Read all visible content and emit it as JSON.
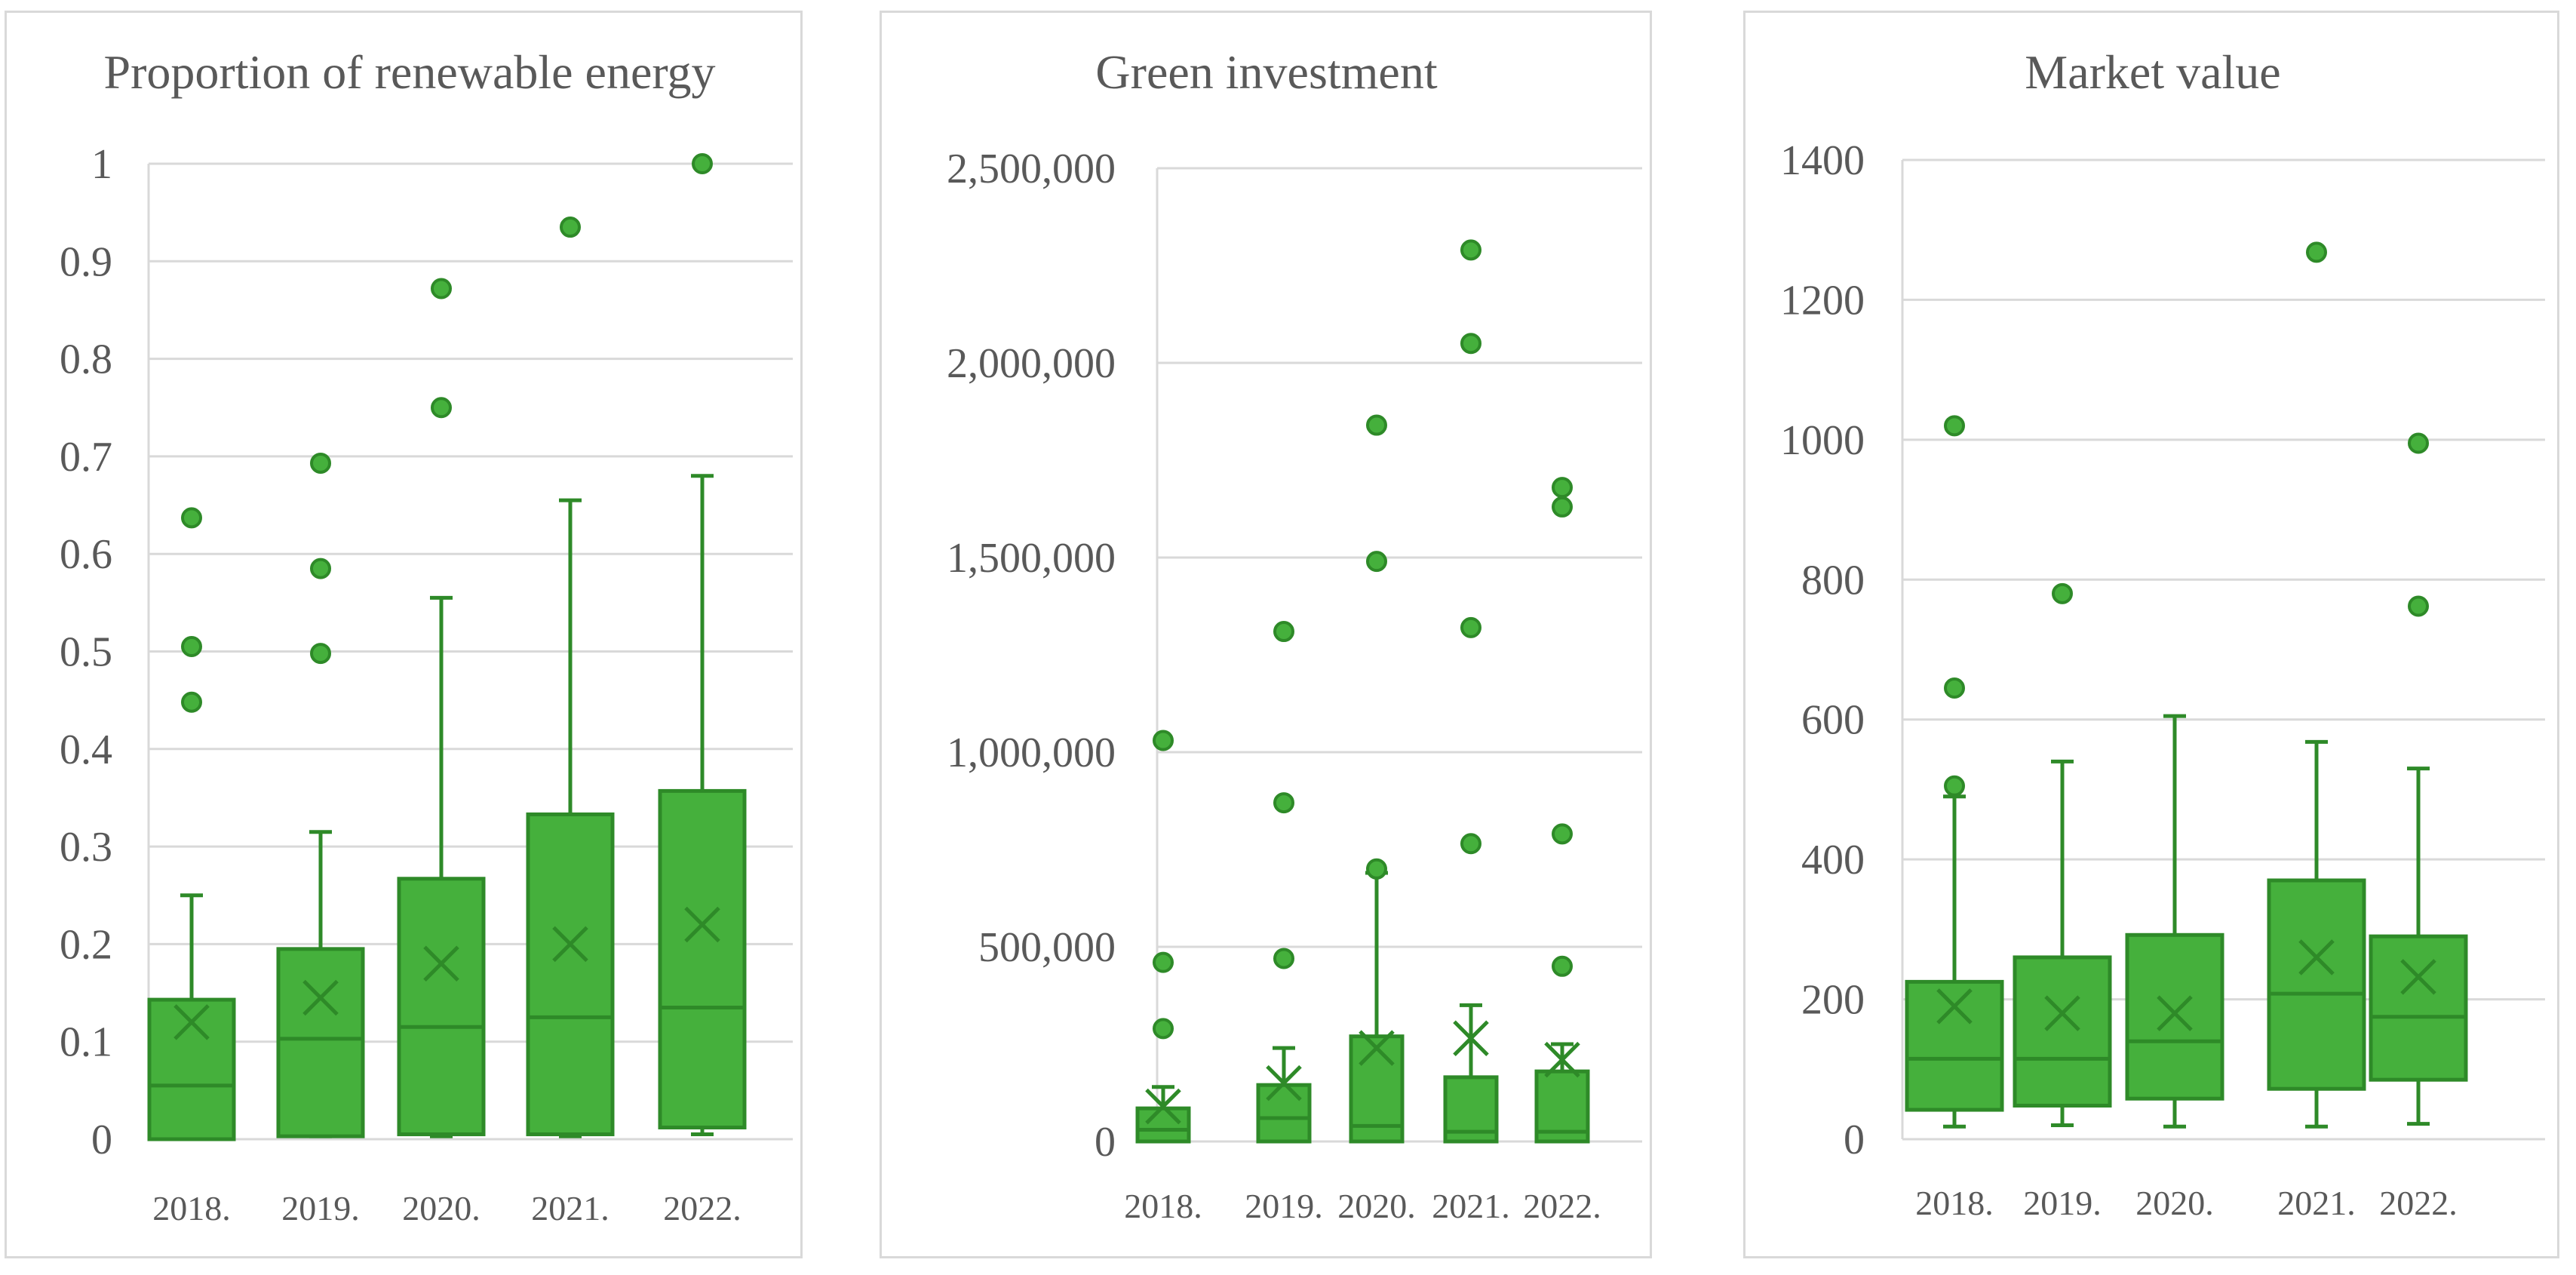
{
  "colors": {
    "box_fill": "#45b03c",
    "box_stroke": "#2e8a28",
    "grid": "#d9d9d9",
    "text": "#595959"
  },
  "chart_data": [
    {
      "type": "box",
      "title": "Proportion of renewable energy",
      "categories": [
        "2018.",
        "2019.",
        "2020.",
        "2021.",
        "2022."
      ],
      "ylim": [
        0,
        1
      ],
      "yticks": [
        0,
        0.1,
        0.2,
        0.3,
        0.4,
        0.5,
        0.6,
        0.7,
        0.8,
        0.9,
        1
      ],
      "ytick_labels": [
        "0",
        "0.1",
        "0.2",
        "0.3",
        "0.4",
        "0.5",
        "0.6",
        "0.7",
        "0.8",
        "0.9",
        "1"
      ],
      "boxes": [
        {
          "min": 0,
          "q1": 0,
          "median": 0.055,
          "q3": 0.143,
          "max": 0.25,
          "mean": 0.12,
          "outliers": [
            0.448,
            0.505,
            0.637
          ]
        },
        {
          "min": 0.003,
          "q1": 0.003,
          "median": 0.103,
          "q3": 0.195,
          "max": 0.315,
          "mean": 0.145,
          "outliers": [
            0.498,
            0.585,
            0.693
          ]
        },
        {
          "min": 0.003,
          "q1": 0.005,
          "median": 0.115,
          "q3": 0.267,
          "max": 0.555,
          "mean": 0.18,
          "outliers": [
            0.75,
            0.872
          ]
        },
        {
          "min": 0.003,
          "q1": 0.005,
          "median": 0.125,
          "q3": 0.333,
          "max": 0.655,
          "mean": 0.2,
          "outliers": [
            0.935
          ]
        },
        {
          "min": 0.005,
          "q1": 0.012,
          "median": 0.135,
          "q3": 0.357,
          "max": 0.68,
          "mean": 0.22,
          "outliers": [
            1.0
          ]
        }
      ]
    },
    {
      "type": "box",
      "title": "Green investment",
      "categories": [
        "2018.",
        "2019.",
        "2020.",
        "2021.",
        "2022."
      ],
      "ylim": [
        0,
        2500000
      ],
      "yticks": [
        0,
        500000,
        1000000,
        1500000,
        2000000,
        2500000
      ],
      "ytick_labels": [
        "0",
        "500,000",
        "1,000,000",
        "1,500,000",
        "2,000,000",
        "2,500,000"
      ],
      "boxes": [
        {
          "min": 0,
          "q1": 0,
          "median": 30000,
          "q3": 85000,
          "max": 140000,
          "mean": 90000,
          "outliers": [
            290000,
            460000,
            1030000
          ]
        },
        {
          "min": 0,
          "q1": 0,
          "median": 60000,
          "q3": 145000,
          "max": 240000,
          "mean": 150000,
          "outliers": [
            470000,
            870000,
            1310000
          ]
        },
        {
          "min": 0,
          "q1": 0,
          "median": 40000,
          "q3": 270000,
          "max": 690000,
          "mean": 240000,
          "outliers": [
            700000,
            1490000,
            1840000
          ]
        },
        {
          "min": 0,
          "q1": 0,
          "median": 25000,
          "q3": 165000,
          "max": 350000,
          "mean": 265000,
          "outliers": [
            765000,
            1320000,
            2050000,
            2290000
          ]
        },
        {
          "min": 0,
          "q1": 0,
          "median": 25000,
          "q3": 180000,
          "max": 250000,
          "mean": 210000,
          "outliers": [
            450000,
            790000,
            1630000,
            1680000
          ]
        }
      ]
    },
    {
      "type": "box",
      "title": "Market value",
      "categories": [
        "2018.",
        "2019.",
        "2020.",
        "2021.",
        "2022."
      ],
      "ylim": [
        0,
        1400
      ],
      "yticks": [
        0,
        200,
        400,
        600,
        800,
        1000,
        1200,
        1400
      ],
      "ytick_labels": [
        "0",
        "200",
        "400",
        "600",
        "800",
        "1000",
        "1200",
        "1400"
      ],
      "boxes": [
        {
          "min": 18,
          "q1": 42,
          "median": 115,
          "q3": 225,
          "max": 490,
          "mean": 190,
          "outliers": [
            505,
            645,
            1020
          ]
        },
        {
          "min": 20,
          "q1": 48,
          "median": 115,
          "q3": 260,
          "max": 540,
          "mean": 180,
          "outliers": [
            780
          ]
        },
        {
          "min": 18,
          "q1": 58,
          "median": 140,
          "q3": 292,
          "max": 605,
          "mean": 180,
          "outliers": []
        },
        {
          "min": 18,
          "q1": 72,
          "median": 208,
          "q3": 370,
          "max": 568,
          "mean": 260,
          "outliers": [
            1268
          ]
        },
        {
          "min": 22,
          "q1": 85,
          "median": 175,
          "q3": 290,
          "max": 530,
          "mean": 232,
          "outliers": [
            762,
            995
          ]
        }
      ]
    }
  ]
}
